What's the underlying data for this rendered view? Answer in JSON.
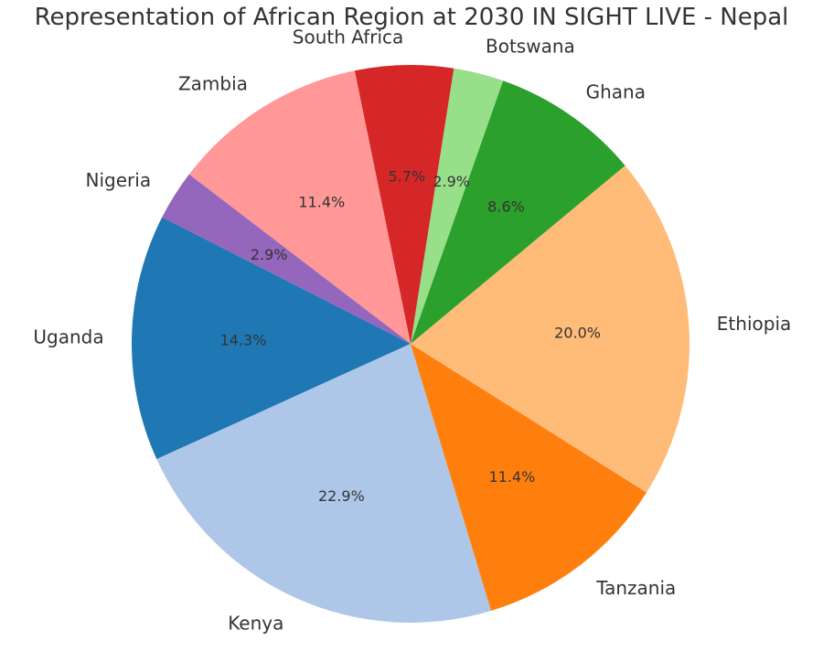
{
  "chart_data": {
    "type": "pie",
    "title": "Representation of African Region at 2030 IN SIGHT LIVE - Nepal",
    "categories": [
      "Uganda",
      "Kenya",
      "Tanzania",
      "Ethiopia",
      "Ghana",
      "Botswana",
      "South Africa",
      "Zambia",
      "Nigeria"
    ],
    "values": [
      14.3,
      22.9,
      11.4,
      20.0,
      8.6,
      2.9,
      5.7,
      11.4,
      2.9
    ],
    "labels": [
      "14.3%",
      "22.9%",
      "11.4%",
      "20.0%",
      "8.6%",
      "2.9%",
      "5.7%",
      "11.4%",
      "2.9%"
    ],
    "colors": [
      "#1f77b4",
      "#aec7e8",
      "#ff7f0e",
      "#ffbb78",
      "#2ca02c",
      "#98df8a",
      "#d62728",
      "#ff9896",
      "#9467bd"
    ],
    "start_angle_deg": 153,
    "direction": "counterclockwise",
    "legend": "none"
  }
}
